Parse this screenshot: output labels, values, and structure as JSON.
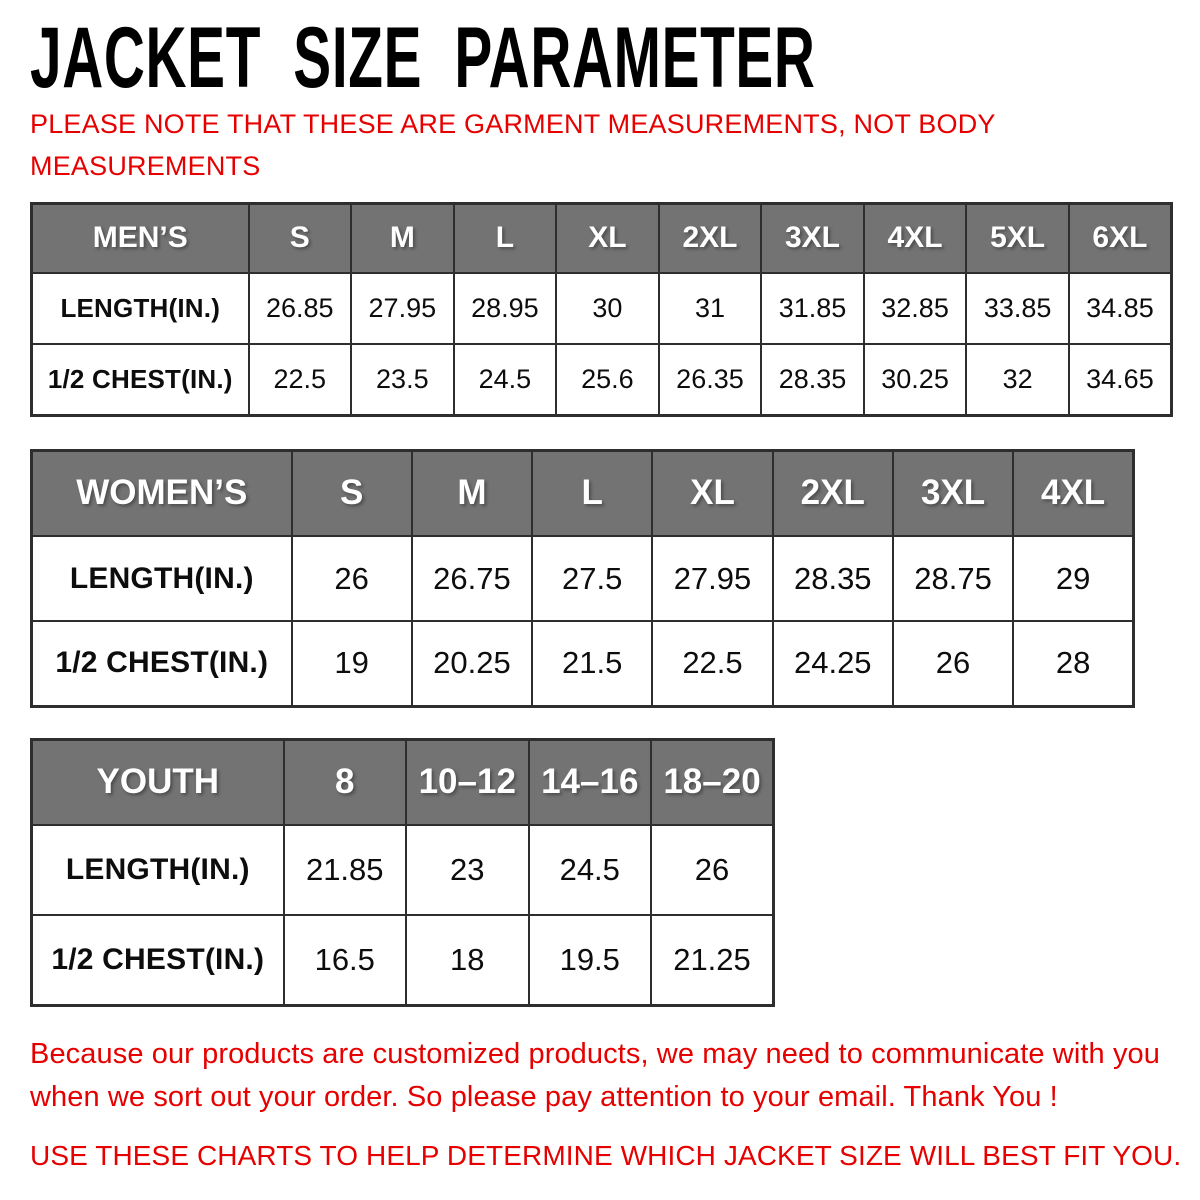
{
  "title": "JACKET SIZE PARAMETER",
  "note": {
    "lines": [
      "PLEASE NOTE THAT THESE ARE GARMENT MEASUREMENTS, NOT BODY",
      "MEASUREMENTS"
    ]
  },
  "colors": {
    "accent_red": "#e60000",
    "header_bg": "#737373",
    "header_text": "#ffffff",
    "table_border": "#2e2e2e",
    "cell_text": "#0d0d0d"
  },
  "tables": [
    {
      "id": "mens",
      "header": [
        "MEN’S",
        "S",
        "M",
        "L",
        "XL",
        "2XL",
        "3XL",
        "4XL",
        "5XL",
        "6XL"
      ],
      "rows": [
        {
          "label": "LENGTH(IN.)",
          "values": [
            "26.85",
            "27.95",
            "28.95",
            "30",
            "31",
            "31.85",
            "32.85",
            "33.85",
            "34.85"
          ]
        },
        {
          "label": "1/2 CHEST(IN.)",
          "values": [
            "22.5",
            "23.5",
            "24.5",
            "25.6",
            "26.35",
            "28.35",
            "30.25",
            "32",
            "34.65"
          ]
        }
      ]
    },
    {
      "id": "womens",
      "header": [
        "WOMEN’S",
        "S",
        "M",
        "L",
        "XL",
        "2XL",
        "3XL",
        "4XL"
      ],
      "rows": [
        {
          "label": "LENGTH(IN.)",
          "values": [
            "26",
            "26.75",
            "27.5",
            "27.95",
            "28.35",
            "28.75",
            "29"
          ]
        },
        {
          "label": "1/2 CHEST(IN.)",
          "values": [
            "19",
            "20.25",
            "21.5",
            "22.5",
            "24.25",
            "26",
            "28"
          ]
        }
      ]
    },
    {
      "id": "youth",
      "header": [
        "YOUTH",
        "8",
        "10–12",
        "14–16",
        "18–20"
      ],
      "rows": [
        {
          "label": "LENGTH(IN.)",
          "values": [
            "21.85",
            "23",
            "24.5",
            "26"
          ]
        },
        {
          "label": "1/2 CHEST(IN.)",
          "values": [
            "16.5",
            "18",
            "19.5",
            "21.25"
          ]
        }
      ]
    }
  ],
  "footer": {
    "paragraph_lines": [
      "Because our products are customized products, we may need to communicate with you",
      "when we sort out your order. So please pay attention to your email. Thank You !"
    ],
    "closing": "USE THESE CHARTS TO HELP DETERMINE WHICH JACKET SIZE WILL BEST FIT YOU."
  }
}
